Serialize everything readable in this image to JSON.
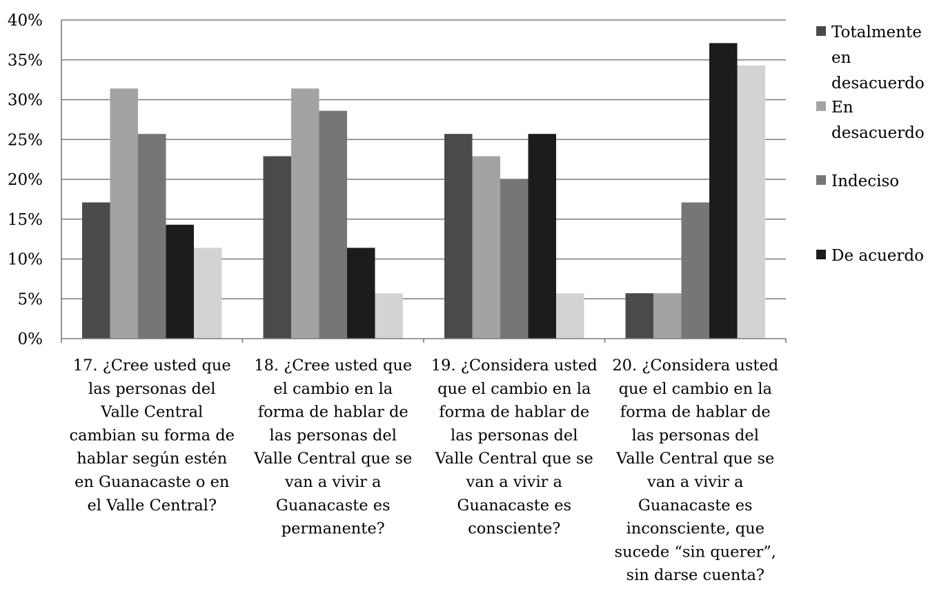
{
  "chart_data": {
    "type": "bar",
    "categories": [
      "17. ¿Cree usted que las personas del Valle Central cambian su forma de hablar según estén en Guanacaste o en el Valle Central?",
      "18. ¿Cree usted que el cambio en la forma de hablar de las personas del Valle Central que se van a vivir a Guanacaste es permanente?",
      "19. ¿Considera usted que el cambio en la forma de hablar de las personas del Valle Central que se van a vivir a Guanacaste es consciente?",
      "20. ¿Considera usted que el cambio en la forma de hablar de las personas del Valle Central que se van a vivir a Guanacaste es inconsciente, que sucede “sin querer”, sin darse cuenta?"
    ],
    "category_lines": [
      [
        "17. ¿Cree usted que",
        "las personas del",
        "Valle Central",
        "cambian su forma de",
        "hablar según estén",
        "en Guanacaste o en",
        "el Valle Central?"
      ],
      [
        "18. ¿Cree usted que",
        "el cambio en la",
        "forma de hablar de",
        "las personas del",
        "Valle Central que se",
        "van a vivir a",
        "Guanacaste es",
        "permanente?"
      ],
      [
        "19. ¿Considera usted",
        "que el cambio en la",
        "forma de hablar de",
        "las personas del",
        "Valle Central que se",
        "van a vivir a",
        "Guanacaste es",
        "consciente?"
      ],
      [
        "20. ¿Considera usted",
        "que el cambio en la",
        "forma de hablar de",
        "las personas del",
        "Valle Central que se",
        "van a vivir a",
        "Guanacaste es",
        "inconsciente, que",
        "sucede “sin querer”,",
        "sin darse cuenta?"
      ]
    ],
    "series": [
      {
        "name": "Totalmente en desacuerdo",
        "legend_lines": [
          "Totalmente",
          "en",
          "desacuerdo"
        ],
        "color": "#4a4a4a",
        "values": [
          17.1,
          22.9,
          25.7,
          5.7
        ]
      },
      {
        "name": "En desacuerdo",
        "legend_lines": [
          "En",
          "desacuerdo"
        ],
        "color": "#a3a3a3",
        "values": [
          31.4,
          31.4,
          22.9,
          5.7
        ]
      },
      {
        "name": "Indeciso",
        "legend_lines": [
          "Indeciso"
        ],
        "color": "#767676",
        "values": [
          25.7,
          28.6,
          20.0,
          17.1
        ]
      },
      {
        "name": "De acuerdo",
        "legend_lines": [
          "De acuerdo"
        ],
        "color": "#1c1c1c",
        "values": [
          14.3,
          11.4,
          25.7,
          37.1
        ]
      },
      {
        "values": [
          11.4,
          5.7,
          5.7,
          34.3
        ],
        "color": "#d3d3d3"
      }
    ],
    "ylim": [
      0,
      40
    ],
    "y_ticks": [
      0,
      5,
      10,
      15,
      20,
      25,
      30,
      35,
      40
    ],
    "y_tick_labels": [
      "0%",
      "5%",
      "10%",
      "15%",
      "20%",
      "25%",
      "30%",
      "35%",
      "40%"
    ],
    "grid": true,
    "legend_position": "right",
    "title": "",
    "xlabel": "",
    "ylabel": ""
  }
}
